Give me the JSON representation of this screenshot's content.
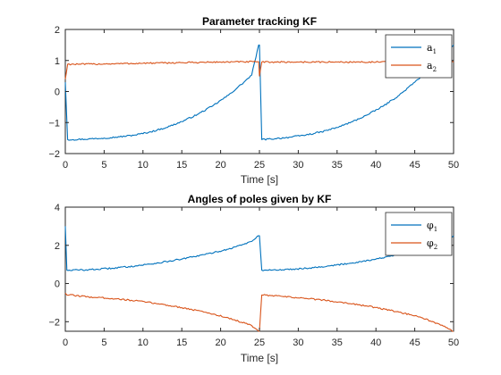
{
  "colors": {
    "series1": "#0072BD",
    "series2": "#D95319",
    "axis": "#262626"
  },
  "chart_data": [
    {
      "type": "line",
      "title": "Parameter tracking KF",
      "xlabel": "Time [s]",
      "ylabel": "",
      "xlim": [
        0,
        50
      ],
      "ylim": [
        -2,
        2
      ],
      "xticks": [
        0,
        5,
        10,
        15,
        20,
        25,
        30,
        35,
        40,
        45,
        50
      ],
      "yticks": [
        -2,
        -1,
        0,
        1,
        2
      ],
      "grid": false,
      "legend_placement": "top-right",
      "series": [
        {
          "name": "a1",
          "legend_base": "a",
          "legend_sub": "1",
          "color": "#0072BD",
          "x": [
            0,
            0.3,
            1,
            3,
            5,
            7,
            9,
            11,
            13,
            15,
            17,
            19,
            21,
            23,
            24,
            24.9,
            25.0,
            25.3,
            27,
            29,
            31,
            33,
            35,
            37,
            39,
            41,
            43,
            45,
            47,
            49,
            50
          ],
          "y": [
            0.3,
            -1.55,
            -1.55,
            -1.53,
            -1.5,
            -1.46,
            -1.4,
            -1.3,
            -1.16,
            -0.97,
            -0.74,
            -0.46,
            -0.12,
            0.3,
            0.53,
            1.5,
            1.5,
            -1.55,
            -1.52,
            -1.47,
            -1.4,
            -1.3,
            -1.16,
            -0.97,
            -0.74,
            -0.46,
            -0.12,
            0.3,
            0.75,
            1.3,
            1.5
          ]
        },
        {
          "name": "a2",
          "legend_base": "a",
          "legend_sub": "2",
          "color": "#D95319",
          "x": [
            0,
            0.3,
            2,
            5,
            10,
            15,
            20,
            24.9,
            25.0,
            25.3,
            30,
            35,
            40,
            45,
            50
          ],
          "y": [
            0.4,
            0.88,
            0.88,
            0.89,
            0.91,
            0.93,
            0.95,
            0.96,
            0.5,
            0.95,
            0.95,
            0.95,
            0.95,
            0.95,
            0.95
          ]
        }
      ]
    },
    {
      "type": "line",
      "title": "Angles of poles given by KF",
      "xlabel": "Time [s]",
      "ylabel": "",
      "xlim": [
        0,
        50
      ],
      "ylim": [
        -2.5,
        4
      ],
      "xticks": [
        0,
        5,
        10,
        15,
        20,
        25,
        30,
        35,
        40,
        45,
        50
      ],
      "yticks": [
        -2,
        0,
        2,
        4
      ],
      "grid": false,
      "legend_placement": "top-right",
      "series": [
        {
          "name": "φ1",
          "legend_base": "φ",
          "legend_sub": "1",
          "color": "#0072BD",
          "x": [
            0,
            0.2,
            0.5,
            3,
            6,
            9,
            12,
            15,
            18,
            21,
            24,
            24.9,
            25.0,
            25.3,
            28,
            31,
            34,
            37,
            40,
            43,
            46,
            49,
            50
          ],
          "y": [
            3.0,
            0.7,
            0.7,
            0.72,
            0.8,
            0.92,
            1.08,
            1.28,
            1.52,
            1.8,
            2.2,
            2.5,
            2.5,
            0.7,
            0.72,
            0.8,
            0.92,
            1.08,
            1.28,
            1.52,
            1.8,
            2.3,
            2.5
          ]
        },
        {
          "name": "φ2",
          "legend_base": "φ",
          "legend_sub": "2",
          "color": "#D95319",
          "x": [
            0,
            0.2,
            0.5,
            3,
            6,
            9,
            12,
            15,
            18,
            21,
            24,
            24.9,
            25.0,
            25.3,
            28,
            31,
            34,
            37,
            40,
            43,
            46,
            49,
            50
          ],
          "y": [
            -0.5,
            -0.6,
            -0.6,
            -0.7,
            -0.78,
            -0.9,
            -1.06,
            -1.26,
            -1.5,
            -1.8,
            -2.2,
            -2.5,
            -2.5,
            -0.6,
            -0.68,
            -0.78,
            -0.9,
            -1.06,
            -1.26,
            -1.5,
            -1.8,
            -2.3,
            -2.5
          ]
        }
      ]
    }
  ]
}
